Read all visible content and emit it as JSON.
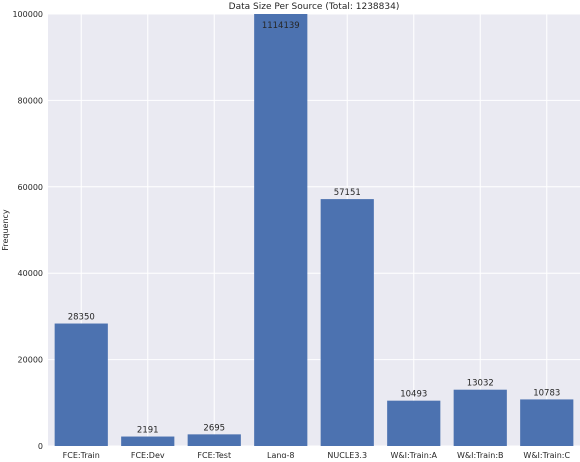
{
  "chart_data": {
    "type": "bar",
    "title": "Data Size Per Source (Total: 1238834)",
    "xlabel": "",
    "ylabel": "Frequency",
    "categories": [
      "FCE:Train",
      "FCE:Dev",
      "FCE:Test",
      "Lang-8",
      "NUCLE3.3",
      "W&I:Train:A",
      "W&I:Train:B",
      "W&I:Train:C"
    ],
    "values": [
      28350,
      2191,
      2695,
      1114139,
      57151,
      10493,
      13032,
      10783
    ],
    "data_labels": [
      "28350",
      "2191",
      "2695",
      "1114139",
      "57151",
      "10493",
      "13032",
      "10783"
    ],
    "ylim": [
      0,
      100000
    ],
    "yticks": [
      0,
      20000,
      40000,
      60000,
      80000,
      100000
    ],
    "ytick_labels": [
      "0",
      "20000",
      "40000",
      "60000",
      "80000",
      "100000"
    ],
    "grid": true,
    "colors": {
      "bar": "#4c72b0",
      "background": "#eaeaf2",
      "grid": "#ffffff"
    }
  }
}
